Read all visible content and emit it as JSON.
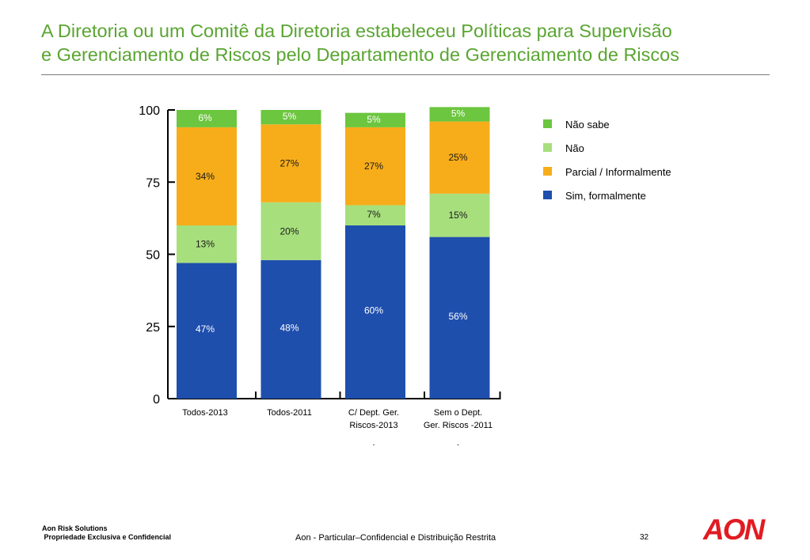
{
  "title_line1": "A Diretoria ou um Comitê da Diretoria estabeleceu Políticas para Supervisão",
  "title_line2": "e Gerenciamento de Riscos pelo Departamento de Gerenciamento de Riscos",
  "chart_data": {
    "type": "bar",
    "stacked": true,
    "title": "",
    "xlabel": "",
    "ylabel": "",
    "ylim": [
      0,
      100
    ],
    "yticks": [
      0,
      25,
      50,
      75,
      100
    ],
    "legend_position": "right",
    "grid": false,
    "categories": [
      [
        "Todos-2013"
      ],
      [
        "Todos-2011"
      ],
      [
        "C/ Dept. Ger.",
        "Riscos-2013"
      ],
      [
        "Sem o Dept.",
        "Ger. Riscos -2011"
      ]
    ],
    "series": [
      {
        "name": "Sim, formalmente",
        "color": "#1f4fad",
        "values": [
          47,
          48,
          60,
          56
        ],
        "labels": [
          "47%",
          "48%",
          "60%",
          "56%"
        ]
      },
      {
        "name": "Não",
        "color": "#a7df7d",
        "values": [
          13,
          20,
          7,
          15
        ],
        "labels": [
          "13%",
          "20%",
          "7%",
          "15%"
        ]
      },
      {
        "name": "Parcial / Informalmente",
        "color": "#f7ad1a",
        "values": [
          34,
          27,
          27,
          25
        ],
        "labels": [
          "34%",
          "27%",
          "27%",
          "25%"
        ]
      },
      {
        "name": "Não sabe",
        "color": "#6cc63f",
        "values": [
          6,
          5,
          5,
          5
        ],
        "labels": [
          "6%",
          "5%",
          "5%",
          "5%"
        ]
      }
    ],
    "legend_order": [
      "Não sabe",
      "Não",
      "Parcial / Informalmente",
      "Sim, formalmente"
    ],
    "footnote_marks": [
      ".",
      "."
    ]
  },
  "footer": {
    "company_line1": "Aon Risk Solutions",
    "company_line2": " Propriedade Exclusiva e Confidencial",
    "confidentiality": "Aon -  Particular–Confidencial e Distribuição Restrita",
    "page_number": "32",
    "logo_text": "AON"
  }
}
